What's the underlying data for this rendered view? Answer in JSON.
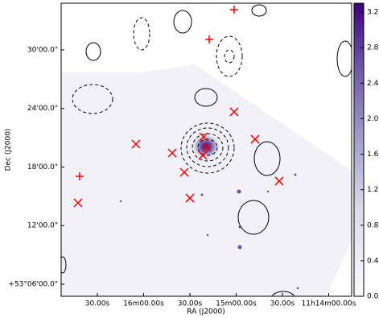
{
  "chart_data": {
    "type": "image",
    "xlabel": "RA (J2000)",
    "ylabel": "Dec (J2000)",
    "xlim": [
      16.891,
      13.752
    ],
    "xticks": [
      {
        "value": 16.5,
        "label": "30.00s"
      },
      {
        "value": 16.0,
        "label": "16m00.00s"
      },
      {
        "value": 15.5,
        "label": "30.00s"
      },
      {
        "value": 15.0,
        "label": "15m00.00s"
      },
      {
        "value": 14.5,
        "label": "30.00s"
      },
      {
        "value": 14.0,
        "label": "11h14m00.00s"
      }
    ],
    "ylim": [
      4.763,
      34.78
    ],
    "yticks": [
      {
        "value": 6,
        "label": "+53°06'00.0\""
      },
      {
        "value": 12,
        "label": "12'00.0\""
      },
      {
        "value": 18,
        "label": "18'00.0\""
      },
      {
        "value": 24,
        "label": "24'00.0\""
      },
      {
        "value": 30,
        "label": "30'00.0\""
      }
    ],
    "clim": [
      0,
      3.3
    ],
    "cticks": [
      {
        "value": 0,
        "label": "0.0"
      },
      0.4,
      0.8,
      1.2,
      1.6,
      {
        "value": 2,
        "label": "2.0"
      },
      2.4,
      2.8,
      3.2
    ],
    "x_markers": {
      "color": "#ff0000",
      "ra": [
        16.083,
        15.691,
        15.561,
        15.5,
        16.709,
        15.022,
        14.796,
        14.535,
        15.352,
        15.317,
        15.361
      ],
      "dec": [
        20.35,
        19.44,
        17.46,
        14.82,
        14.33,
        23.65,
        20.85,
        16.56,
        21.09,
        20.02,
        19.2
      ]
    },
    "plus_markers": {
      "color": "#ff0000",
      "ra": [
        15.022,
        15.291,
        16.691
      ],
      "dec": [
        34.12,
        31.07,
        17.05
      ]
    }
  }
}
